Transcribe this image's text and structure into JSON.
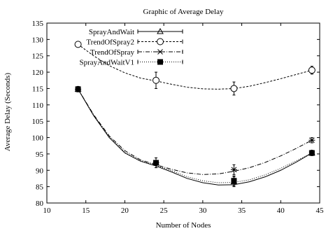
{
  "chart_data": {
    "type": "line",
    "title": "Graphic of Average Delay",
    "xlabel": "Number of Nodes",
    "ylabel": "Average Delay (Seconds)",
    "xlim": [
      10,
      45
    ],
    "ylim": [
      80,
      135
    ],
    "xticks": [
      10,
      15,
      20,
      25,
      30,
      35,
      40,
      45
    ],
    "yticks": [
      80,
      85,
      90,
      95,
      100,
      105,
      110,
      115,
      120,
      125,
      130,
      135
    ],
    "grid": false,
    "legend_position": "top-left",
    "x": [
      14,
      24,
      34,
      44
    ],
    "series": [
      {
        "name": "SprayAndWait",
        "marker": "triangle",
        "dash": "",
        "values": [
          114.8,
          92.3,
          86.5,
          95.3
        ],
        "errors": [
          0.8,
          1.5,
          1.5,
          0.8
        ],
        "curve": [
          [
            14,
            114.8
          ],
          [
            16,
            106.7
          ],
          [
            18,
            100.0
          ],
          [
            20,
            95.3
          ],
          [
            22,
            92.8
          ],
          [
            24,
            91.3
          ],
          [
            26,
            89.5
          ],
          [
            28,
            87.5
          ],
          [
            30,
            86.2
          ],
          [
            32,
            85.5
          ],
          [
            34,
            85.6
          ],
          [
            36,
            86.5
          ],
          [
            38,
            88.0
          ],
          [
            40,
            90.0
          ],
          [
            42,
            92.5
          ],
          [
            44,
            95.3
          ]
        ]
      },
      {
        "name": "TrendOfSpray2",
        "marker": "circle",
        "dash": "3,2",
        "values": [
          128.5,
          117.5,
          115.0,
          120.6
        ],
        "errors": [
          0,
          2.5,
          2.0,
          1.2
        ],
        "curve": [
          [
            14,
            128.5
          ],
          [
            16,
            125.0
          ],
          [
            18,
            122.0
          ],
          [
            20,
            119.8
          ],
          [
            22,
            118.2
          ],
          [
            24,
            117.3
          ],
          [
            26,
            116.3
          ],
          [
            28,
            115.4
          ],
          [
            30,
            114.9
          ],
          [
            32,
            114.8
          ],
          [
            34,
            115.0
          ],
          [
            36,
            115.7
          ],
          [
            38,
            116.8
          ],
          [
            40,
            118.0
          ],
          [
            42,
            119.3
          ],
          [
            44,
            120.6
          ]
        ]
      },
      {
        "name": "TrendOfSpray",
        "marker": "star",
        "dash": "6,2,1,2",
        "values": [
          114.8,
          92.3,
          90.2,
          99.2
        ],
        "errors": [
          0.8,
          1.5,
          1.5,
          0.8
        ],
        "curve": [
          [
            14,
            114.8
          ],
          [
            16,
            107.0
          ],
          [
            18,
            100.5
          ],
          [
            20,
            96.0
          ],
          [
            22,
            93.2
          ],
          [
            24,
            91.7
          ],
          [
            26,
            90.3
          ],
          [
            28,
            89.2
          ],
          [
            30,
            88.7
          ],
          [
            32,
            88.9
          ],
          [
            34,
            89.7
          ],
          [
            36,
            90.8
          ],
          [
            38,
            92.4
          ],
          [
            40,
            94.4
          ],
          [
            42,
            96.7
          ],
          [
            44,
            99.2
          ]
        ]
      },
      {
        "name": "SprayAndWaitV1",
        "marker": "square",
        "dash": "1,2",
        "values": [
          114.8,
          92.3,
          86.8,
          95.3
        ],
        "errors": [
          0.8,
          1.5,
          1.5,
          0.8
        ],
        "curve": [
          [
            14,
            114.8
          ],
          [
            16,
            106.8
          ],
          [
            18,
            100.2
          ],
          [
            20,
            95.5
          ],
          [
            22,
            92.9
          ],
          [
            24,
            91.5
          ],
          [
            26,
            89.9
          ],
          [
            28,
            88.0
          ],
          [
            30,
            86.8
          ],
          [
            32,
            86.2
          ],
          [
            34,
            86.3
          ],
          [
            36,
            87.1
          ],
          [
            38,
            88.6
          ],
          [
            40,
            90.6
          ],
          [
            42,
            92.9
          ],
          [
            44,
            95.3
          ]
        ]
      }
    ]
  }
}
